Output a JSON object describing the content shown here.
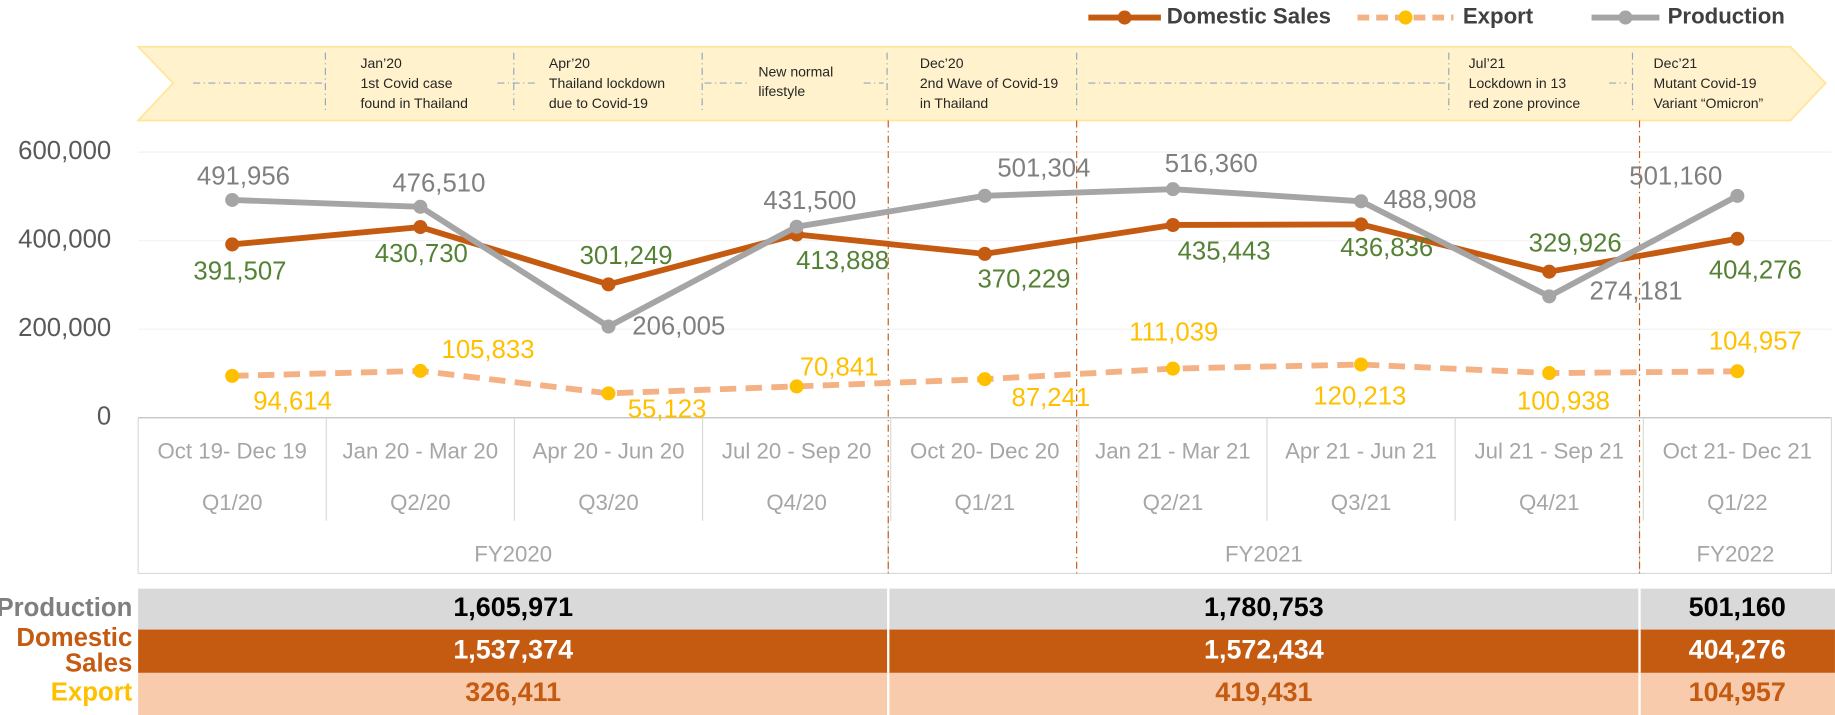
{
  "chart_data": {
    "type": "line",
    "legend": [
      "Domestic Sales",
      "Export",
      "Production"
    ],
    "categories": [
      "Oct 19- Dec 19",
      "Jan 20 - Mar 20",
      "Apr 20 - Jun 20",
      "Jul 20 - Sep 20",
      "Oct 20- Dec 20",
      "Jan 21 - Mar 21",
      "Apr 21 - Jun 21",
      "Jul 21 - Sep 21",
      "Oct 21- Dec 21"
    ],
    "quarters": [
      "Q1/20",
      "Q2/20",
      "Q3/20",
      "Q4/20",
      "Q1/21",
      "Q2/21",
      "Q3/21",
      "Q4/21",
      "Q1/22"
    ],
    "fiscal_years": [
      "FY2020",
      "FY2021",
      "FY2022"
    ],
    "ylim": [
      0,
      600000
    ],
    "yticks": [
      0,
      {
        "value": 200000,
        "label": "200,000"
      },
      {
        "value": 400000,
        "label": "400,000"
      },
      {
        "value": 600000,
        "label": "600,000"
      }
    ],
    "series": [
      {
        "name": "Domestic Sales",
        "color": "#c55a11",
        "label_color": "#548235",
        "dash": false,
        "values": [
          391507,
          430730,
          301249,
          413888,
          370229,
          435443,
          436836,
          329926,
          404276
        ],
        "value_labels": [
          "391,507",
          "430,730",
          "301,249",
          "413,888",
          "370,229",
          "435,443",
          "436,836",
          "329,926",
          "404,276"
        ]
      },
      {
        "name": "Export",
        "color": "#f4b183",
        "marker_color": "#ffc000",
        "label_color": "#ffc000",
        "dash": true,
        "values": [
          94614,
          105833,
          55123,
          70841,
          87241,
          111039,
          120213,
          100938,
          104957
        ],
        "value_labels": [
          "94,614",
          "105,833",
          "55,123",
          "70,841",
          "87,241",
          "111,039",
          "120,213",
          "100,938",
          "104,957"
        ]
      },
      {
        "name": "Production",
        "color": "#a5a5a5",
        "label_color": "#7f7f7f",
        "dash": false,
        "values": [
          491956,
          476510,
          206005,
          431500,
          501304,
          516360,
          488908,
          274181,
          501160
        ],
        "value_labels": [
          "491,956",
          "476,510",
          "206,005",
          "431,500",
          "501,304",
          "516,360",
          "488,908",
          "274,181",
          "501,160"
        ]
      }
    ],
    "events": [
      {
        "lines": [
          "Jan’20",
          "1st Covid case",
          "found in Thailand"
        ]
      },
      {
        "lines": [
          "Apr’20",
          "Thailand lockdown",
          "due to Covid-19"
        ]
      },
      {
        "lines": [
          "New normal",
          "lifestyle"
        ]
      },
      {
        "lines": [
          "Dec’20",
          "2nd Wave of Covid-19",
          "in Thailand"
        ]
      },
      {
        "lines": [
          "Jul’21",
          "Lockdown in 13",
          "red zone province"
        ]
      },
      {
        "lines": [
          "Dec’21",
          "Mutant Covid-19",
          "Variant “Omicron”"
        ]
      }
    ],
    "summary": {
      "rows": [
        {
          "label": "Production",
          "values": [
            "1,605,971",
            "1,780,753",
            "501,160"
          ]
        },
        {
          "label": "Domestic Sales",
          "values": [
            "1,537,374",
            "1,572,434",
            "404,276"
          ]
        },
        {
          "label": "Export",
          "values": [
            "326,411",
            "419,431",
            "104,957"
          ]
        }
      ]
    }
  }
}
